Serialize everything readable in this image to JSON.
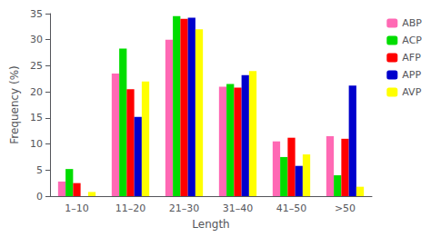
{
  "chart_data": {
    "type": "bar",
    "xlabel": "Length",
    "ylabel": "Frequency (%)",
    "categories": [
      "1–10",
      "11–20",
      "21–30",
      "31–40",
      "41–50",
      ">50"
    ],
    "series": [
      {
        "name": "ABP",
        "color": "#FF69B4",
        "values": [
          2.8,
          23.5,
          30.0,
          21.0,
          10.5,
          11.5
        ]
      },
      {
        "name": "ACP",
        "color": "#00DD00",
        "values": [
          5.2,
          28.3,
          34.5,
          21.5,
          7.5,
          4.0
        ]
      },
      {
        "name": "AFP",
        "color": "#FF0000",
        "values": [
          2.5,
          20.5,
          34.0,
          20.8,
          11.2,
          11.0
        ]
      },
      {
        "name": "APP",
        "color": "#0000CC",
        "values": [
          0.0,
          15.2,
          34.2,
          23.2,
          5.8,
          21.2
        ]
      },
      {
        "name": "AVP",
        "color": "#FFFF00",
        "values": [
          0.8,
          22.0,
          32.0,
          24.0,
          8.0,
          1.8
        ]
      }
    ],
    "ylim": [
      0,
      35
    ],
    "yticks": [
      0,
      5,
      10,
      15,
      20,
      25,
      30,
      35
    ],
    "grid": false,
    "legend": "upper right"
  }
}
